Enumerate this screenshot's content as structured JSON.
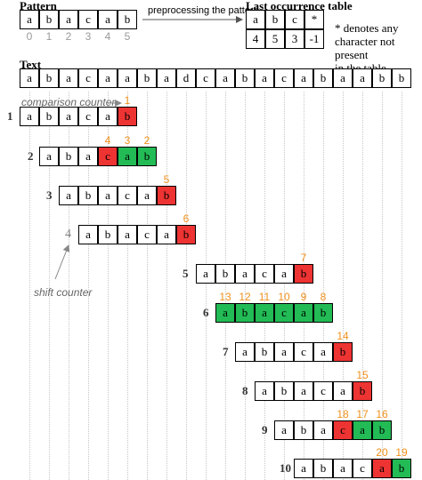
{
  "pattern": {
    "heading": "Pattern",
    "chars": [
      "a",
      "b",
      "a",
      "c",
      "a",
      "b"
    ],
    "indices": [
      "0",
      "1",
      "2",
      "3",
      "4",
      "5"
    ]
  },
  "preprocess_label": "preprocessing the pattern",
  "last_occurrence": {
    "heading": "Last occurrence table",
    "keys": [
      "a",
      "b",
      "c",
      "*"
    ],
    "values": [
      "4",
      "5",
      "3",
      "-1"
    ],
    "note_lines": [
      "* denotes any",
      "character not present",
      "in the table"
    ]
  },
  "text": {
    "heading": "Text",
    "chars": [
      "a",
      "b",
      "a",
      "c",
      "a",
      "a",
      "b",
      "a",
      "d",
      "c",
      "a",
      "b",
      "a",
      "c",
      "a",
      "b",
      "a",
      "a",
      "b",
      "b"
    ]
  },
  "comparison_counter_label": "comparison counter",
  "shift_counter_label": "shift counter",
  "shifts": [
    {
      "label": "1",
      "offset": 0,
      "states": [
        "n",
        "n",
        "n",
        "n",
        "n",
        "r"
      ],
      "counters": [
        null,
        null,
        null,
        null,
        null,
        "1"
      ]
    },
    {
      "label": "2",
      "offset": 1,
      "states": [
        "n",
        "n",
        "n",
        "r",
        "g",
        "g"
      ],
      "counters": [
        null,
        null,
        null,
        "4",
        "3",
        "2"
      ]
    },
    {
      "label": "3",
      "offset": 2,
      "states": [
        "n",
        "n",
        "n",
        "n",
        "n",
        "r"
      ],
      "counters": [
        null,
        null,
        null,
        null,
        null,
        "5"
      ]
    },
    {
      "label": "4",
      "offset": 3,
      "states": [
        "n",
        "n",
        "n",
        "n",
        "n",
        "r"
      ],
      "counters": [
        null,
        null,
        null,
        null,
        null,
        "6"
      ]
    },
    {
      "label": "5",
      "offset": 9,
      "states": [
        "n",
        "n",
        "n",
        "n",
        "n",
        "r"
      ],
      "counters": [
        null,
        null,
        null,
        null,
        null,
        "7"
      ]
    },
    {
      "label": "6",
      "offset": 10,
      "states": [
        "g",
        "g",
        "g",
        "g",
        "g",
        "g"
      ],
      "counters": [
        "13",
        "12",
        "11",
        "10",
        "9",
        "8"
      ]
    },
    {
      "label": "7",
      "offset": 11,
      "states": [
        "n",
        "n",
        "n",
        "n",
        "n",
        "r"
      ],
      "counters": [
        null,
        null,
        null,
        null,
        null,
        "14"
      ]
    },
    {
      "label": "8",
      "offset": 12,
      "states": [
        "n",
        "n",
        "n",
        "n",
        "n",
        "r"
      ],
      "counters": [
        null,
        null,
        null,
        null,
        null,
        "15"
      ]
    },
    {
      "label": "9",
      "offset": 13,
      "states": [
        "n",
        "n",
        "n",
        "r",
        "g",
        "g"
      ],
      "counters": [
        null,
        null,
        null,
        "18",
        "17",
        "16"
      ]
    },
    {
      "label": "10",
      "offset": 14,
      "states": [
        "n",
        "n",
        "n",
        "n",
        "r",
        "g"
      ],
      "counters": [
        null,
        null,
        null,
        null,
        "20",
        "19"
      ]
    }
  ],
  "colors": {
    "mismatch": "#ee3333",
    "match": "#22bb55",
    "counter": "#f0901c",
    "index": "#9a9a9a"
  }
}
